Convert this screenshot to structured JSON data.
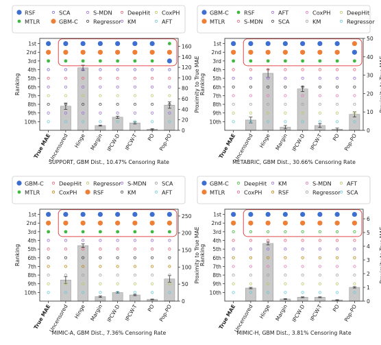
{
  "rank_labels": [
    "1st",
    "2nd",
    "3rd",
    "4th",
    "5th",
    "6th",
    "7th",
    "8th",
    "9th",
    "10th"
  ],
  "x_categories": [
    "True MAE",
    "Uncensored",
    "Hinge",
    "Margin",
    "IPCW-D",
    "IPCW-T",
    "PO",
    "Pop-PO"
  ],
  "ylabel": "Ranking",
  "ylabel_right": "Proximity to True MAE",
  "chart_data": [
    {
      "type": "bar",
      "title": "SUPPORT, GBM Dist., 10.47% Censoring Rate",
      "categories": [
        "Uncensored",
        "Hinge",
        "Margin",
        "IPCW-D",
        "IPCW-T",
        "PO",
        "Pop-PO"
      ],
      "values": [
        46,
        119,
        9,
        25,
        14,
        2,
        48
      ],
      "errors": [
        6,
        5,
        1,
        2,
        2,
        1,
        6
      ],
      "ylim_right": [
        0,
        175
      ],
      "yticks_right": [
        0,
        20,
        40,
        60,
        80,
        100,
        120,
        140,
        160
      ],
      "legend": [
        {
          "name": "RSF",
          "color": "#3d6fd1",
          "marker": "filled-large"
        },
        {
          "name": "MTLR",
          "color": "#3fb83f",
          "marker": "filled"
        },
        {
          "name": "SCA",
          "color": "#7b68cc",
          "marker": "hollow"
        },
        {
          "name": "GBM-C",
          "color": "#ee7f36",
          "marker": "filled-large"
        },
        {
          "name": "S-MDN",
          "color": "#9a6fd0",
          "marker": "hollow"
        },
        {
          "name": "Regressor",
          "color": "#444444",
          "marker": "hollow"
        },
        {
          "name": "DeepHit",
          "color": "#e5657d",
          "marker": "hollow"
        },
        {
          "name": "KM",
          "color": "#9a6fd0",
          "marker": "hollow"
        },
        {
          "name": "CoxPH",
          "color": "#b5c96a",
          "marker": "hollow"
        },
        {
          "name": "AFT",
          "color": "#6cc7d8",
          "marker": "hollow"
        }
      ],
      "rank_order": [
        "RSF",
        "GBM-C",
        "MTLR",
        "SCA",
        "DeepHit",
        "S-MDN",
        "CoxPH",
        "Regressor",
        "KM",
        "AFT"
      ],
      "swapped_cell": {
        "category": "Pop-PO",
        "rank": 3,
        "model": "RSF"
      }
    },
    {
      "type": "bar",
      "title": "METABRIC, GBM Dist., 30.66% Censoring Rate",
      "categories": [
        "Uncensored",
        "Hinge",
        "Margin",
        "IPCW-D",
        "IPCW-T",
        "PO",
        "Pop-PO"
      ],
      "values": [
        5.6,
        31,
        1.7,
        22.5,
        2.6,
        0.6,
        8.7
      ],
      "errors": [
        1.6,
        2.2,
        0.9,
        1.4,
        1.0,
        0.6,
        1.4
      ],
      "ylim_right": [
        0,
        50
      ],
      "yticks_right": [
        0,
        10,
        20,
        30,
        40,
        50
      ],
      "legend": [
        {
          "name": "GBM-C",
          "color": "#3d6fd1",
          "marker": "filled-large"
        },
        {
          "name": "MTLR",
          "color": "#ee7f36",
          "marker": "filled-large"
        },
        {
          "name": "RSF",
          "color": "#3fb83f",
          "marker": "filled"
        },
        {
          "name": "S-MDN",
          "color": "#e5657d",
          "marker": "hollow"
        },
        {
          "name": "AFT",
          "color": "#9a6fd0",
          "marker": "hollow"
        },
        {
          "name": "SCA",
          "color": "#444444",
          "marker": "hollow"
        },
        {
          "name": "CoxPH",
          "color": "#e07ab8",
          "marker": "hollow"
        },
        {
          "name": "KM",
          "color": "#9aa0a6",
          "marker": "hollow"
        },
        {
          "name": "DeepHit",
          "color": "#b5c96a",
          "marker": "hollow"
        },
        {
          "name": "Regressor",
          "color": "#6cc7d8",
          "marker": "hollow"
        }
      ],
      "rank_order": [
        "GBM-C",
        "MTLR",
        "RSF",
        "S-MDN",
        "AFT",
        "SCA",
        "CoxPH",
        "KM",
        "DeepHit",
        "Regressor"
      ],
      "swapped_cell": {
        "category": "Pop-PO",
        "rank": 2,
        "model": "GBM-C"
      }
    },
    {
      "type": "bar",
      "title": "MIMIC-A, GBM Dist., 7.36% Censoring Rate",
      "categories": [
        "Uncensored",
        "Hinge",
        "Margin",
        "IPCW-D",
        "IPCW-T",
        "PO",
        "Pop-PO"
      ],
      "values": [
        62,
        163,
        13,
        25,
        18,
        5,
        65
      ],
      "errors": [
        10,
        5,
        2,
        2,
        2,
        1,
        10
      ],
      "ylim_right": [
        0,
        270
      ],
      "yticks_right": [
        0,
        50,
        100,
        150,
        200,
        250
      ],
      "legend": [
        {
          "name": "GBM-C",
          "color": "#3d6fd1",
          "marker": "filled-large"
        },
        {
          "name": "MTLR",
          "color": "#3fb83f",
          "marker": "filled"
        },
        {
          "name": "DeepHit",
          "color": "#e5657d",
          "marker": "hollow"
        },
        {
          "name": "CoxPH",
          "color": "#b8860b",
          "marker": "hollow"
        },
        {
          "name": "Regressor",
          "color": "#b5c96a",
          "marker": "hollow"
        },
        {
          "name": "RSF",
          "color": "#ee7f36",
          "marker": "filled-large"
        },
        {
          "name": "S-MDN",
          "color": "#9a6fd0",
          "marker": "hollow"
        },
        {
          "name": "KM",
          "color": "#444444",
          "marker": "hollow"
        },
        {
          "name": "SCA",
          "color": "#9aa0a6",
          "marker": "hollow"
        },
        {
          "name": "AFT",
          "color": "#6cc7d8",
          "marker": "hollow"
        }
      ],
      "rank_order": [
        "GBM-C",
        "RSF",
        "MTLR",
        "S-MDN",
        "DeepHit",
        "KM",
        "CoxPH",
        "SCA",
        "Regressor",
        "AFT"
      ],
      "swapped_cell": null
    },
    {
      "type": "bar",
      "title": "MIMIC-H, GBM Dist., 3.81% Censoring Rate",
      "categories": [
        "Uncensored",
        "Hinge",
        "Margin",
        "IPCW-D",
        "IPCW-T",
        "PO",
        "Pop-PO"
      ],
      "values": [
        0.95,
        4.2,
        0.15,
        0.28,
        0.28,
        0.08,
        1.0
      ],
      "errors": [
        0.05,
        0.1,
        0.03,
        0.03,
        0.03,
        0.02,
        0.05
      ],
      "ylim_right": [
        0,
        6.7
      ],
      "yticks_right": [
        0,
        1,
        2,
        3,
        4,
        5,
        6
      ],
      "legend": [
        {
          "name": "GBM-C",
          "color": "#3d6fd1",
          "marker": "filled-large"
        },
        {
          "name": "MTLR",
          "color": "#ee7f36",
          "marker": "filled-large"
        },
        {
          "name": "DeepHit",
          "color": "#3fb83f",
          "marker": "hollow"
        },
        {
          "name": "CoxPH",
          "color": "#e5657d",
          "marker": "hollow"
        },
        {
          "name": "KM",
          "color": "#9a6fd0",
          "marker": "hollow"
        },
        {
          "name": "RSF",
          "color": "#b8860b",
          "marker": "hollow"
        },
        {
          "name": "S-MDN",
          "color": "#e07ab8",
          "marker": "hollow"
        },
        {
          "name": "Regressor",
          "color": "#9aa0a6",
          "marker": "hollow"
        },
        {
          "name": "AFT",
          "color": "#b5c96a",
          "marker": "hollow"
        },
        {
          "name": "SCA",
          "color": "#6cc7d8",
          "marker": "hollow"
        }
      ],
      "rank_order": [
        "GBM-C",
        "MTLR",
        "DeepHit",
        "CoxPH",
        "KM",
        "RSF",
        "S-MDN",
        "Regressor",
        "AFT",
        "SCA"
      ],
      "swapped_cell": null
    }
  ]
}
